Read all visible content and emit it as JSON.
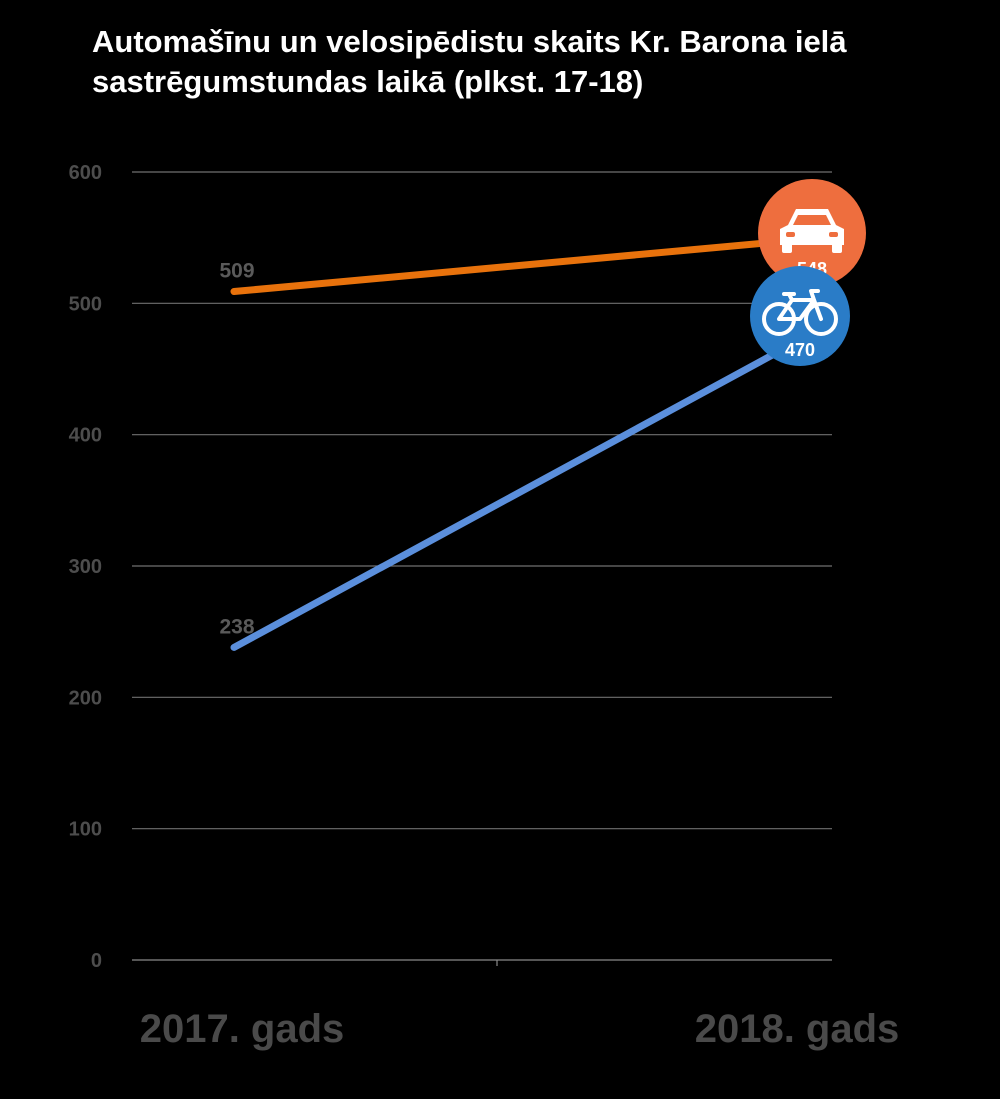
{
  "chart_data": {
    "type": "line",
    "title_lines": [
      "Automašīnu un velosipēdistu skaits Kr. Barona ielā",
      "sastrēgumstundas laikā (plkst. 17-18)"
    ],
    "categories": [
      "2017. gads",
      "2018. gads"
    ],
    "ylim": [
      0,
      600
    ],
    "yticks": [
      0,
      100,
      200,
      300,
      400,
      500,
      600
    ],
    "grid": true,
    "series": [
      {
        "values": [
          509,
          548
        ],
        "color": "#e8720c",
        "badge_color": "#ee6e3e",
        "icon": "car-icon"
      },
      {
        "values": [
          238,
          470
        ],
        "color": "#5b8fdc",
        "badge_color": "#2a7cc7",
        "icon": "bicycle-icon"
      }
    ]
  }
}
